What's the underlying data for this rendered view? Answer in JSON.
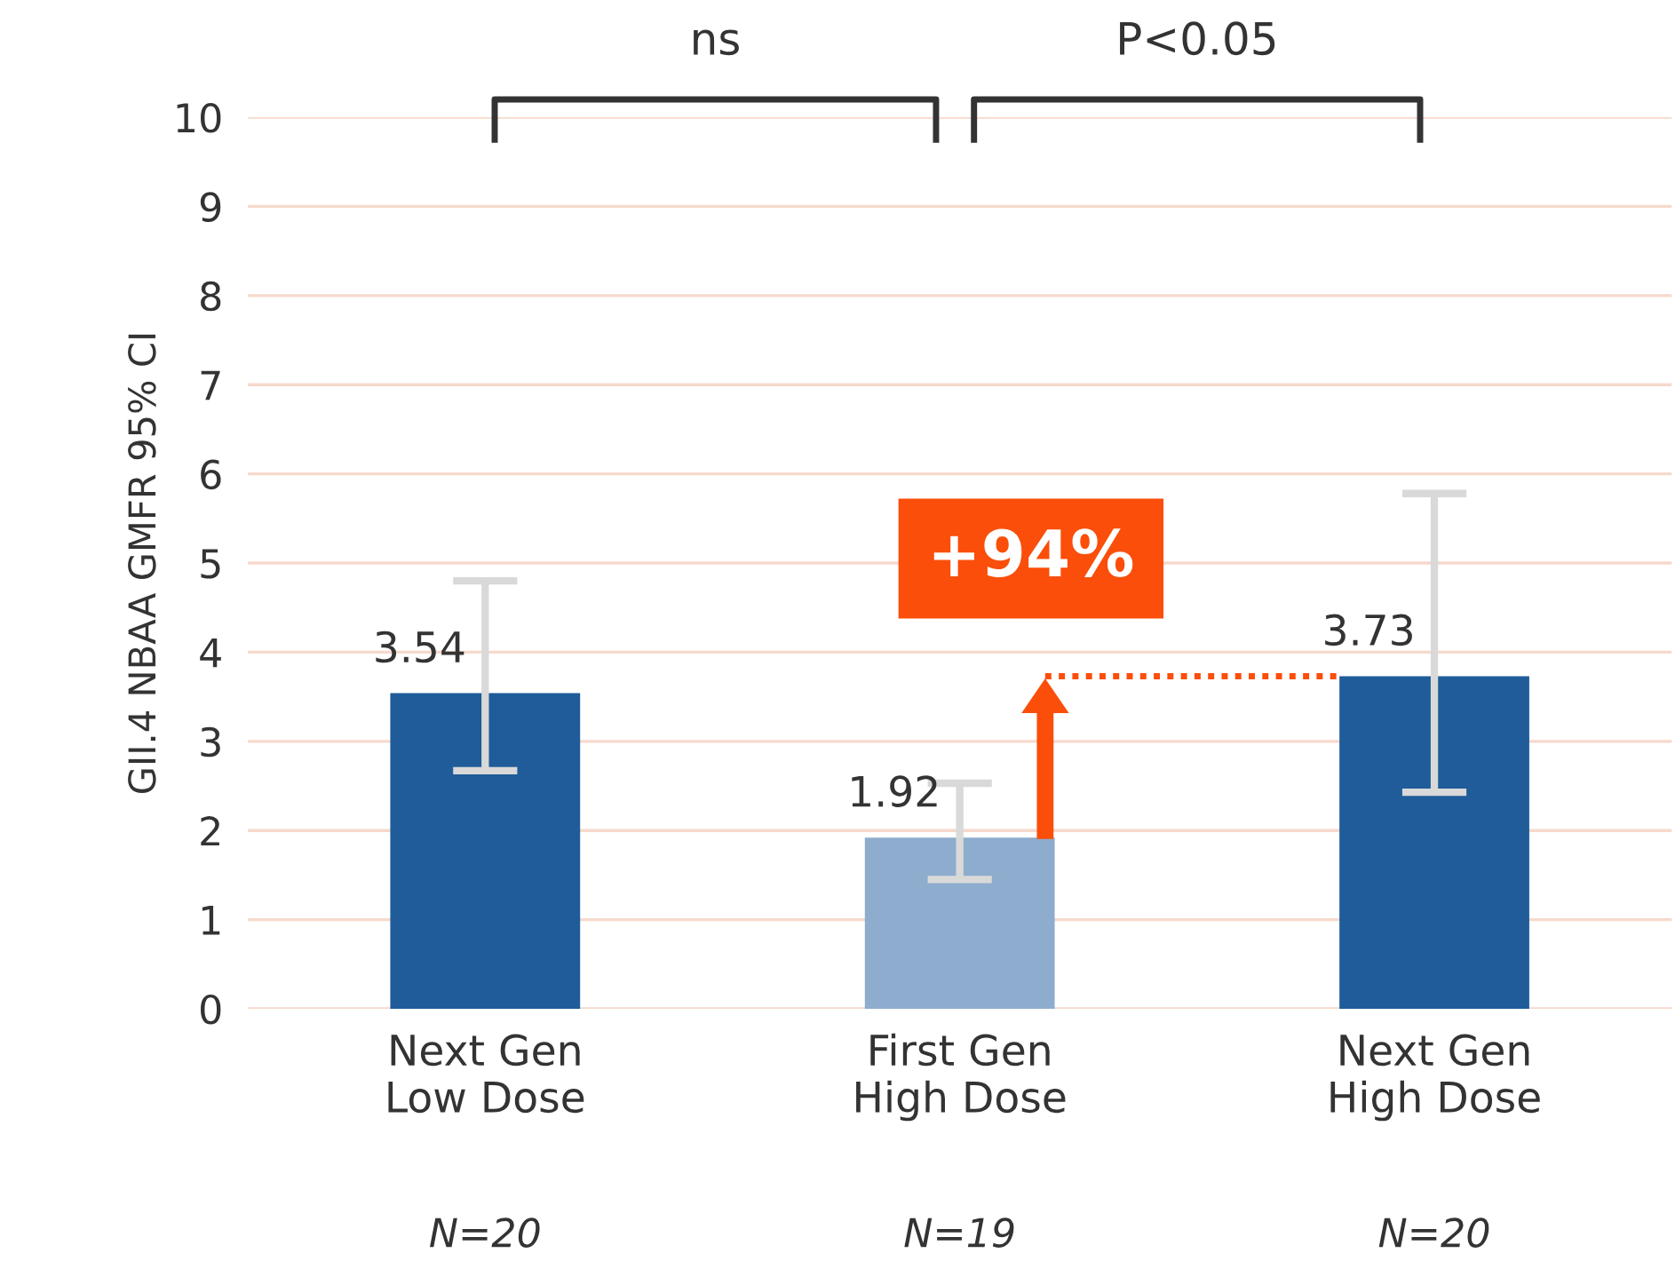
{
  "chart_data": {
    "type": "bar",
    "categories": [
      "Next Gen\nLow Dose",
      "First Gen\nHigh Dose",
      "Next Gen\nHigh Dose"
    ],
    "values": [
      3.54,
      1.92,
      3.73
    ],
    "colors": [
      "#1f5c99",
      "#8eaccd",
      "#1f5c99"
    ],
    "errors": [
      [
        2.67,
        4.8
      ],
      [
        1.45,
        2.53
      ],
      [
        2.43,
        5.78
      ]
    ],
    "data_labels": true,
    "ylabel": "GII.4 NBAA GMFR 95% CI",
    "ylim": [
      0,
      10
    ],
    "yticks": [
      0,
      1,
      2,
      3,
      4,
      5,
      6,
      7,
      8,
      9,
      10
    ],
    "grid": "y",
    "annotations": [
      "ns",
      "P<0.05",
      "+94%",
      "N=20",
      "N=19",
      "N=20"
    ]
  }
}
